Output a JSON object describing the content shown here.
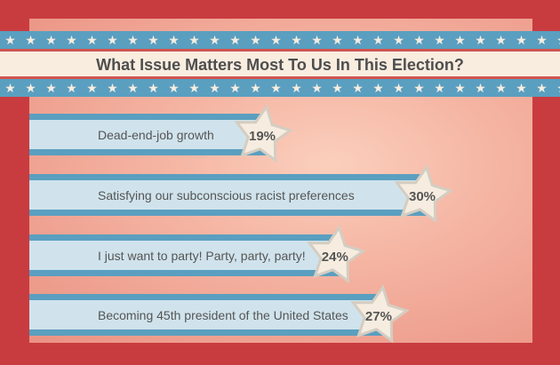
{
  "chart_data": {
    "type": "bar",
    "orientation": "horizontal",
    "title": "What Issue Matters Most To Us In This Election?",
    "xlabel": "",
    "ylabel": "",
    "unit": "%",
    "categories": [
      "Dead-end-job growth",
      "Satisfying our subconscious racist preferences",
      "I just want to party! Party, party, party!",
      "Becoming 45th president of the United States"
    ],
    "values": [
      19,
      30,
      24,
      27
    ],
    "value_labels": [
      "19%",
      "30%",
      "24%",
      "27%"
    ],
    "xlim": [
      0,
      30
    ],
    "grid": false,
    "legend": "none"
  },
  "colors": {
    "frame": "#c83c40",
    "bar_stripe": "#5a9fc0",
    "bar_fill": "#d0e3ec",
    "star_fill": "#f6ede0",
    "star_stroke": "#d4cdc2",
    "text": "#555555"
  }
}
